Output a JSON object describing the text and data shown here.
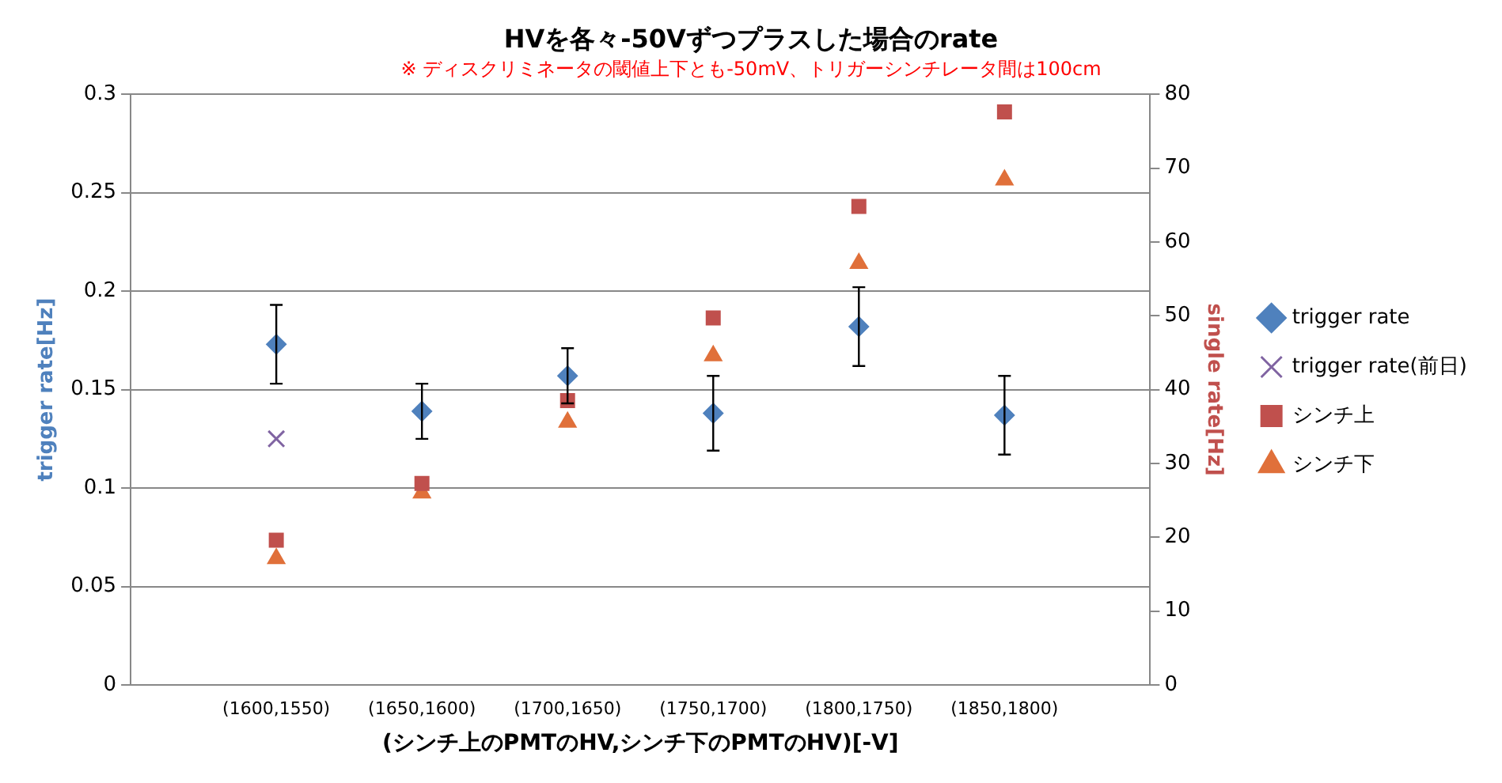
{
  "chart_data": {
    "type": "scatter",
    "title": "HVを各々-50Vずつプラスした場合のrate",
    "subtitle": "※ ディスクリミネータの閾値上下とも-50mV、トリガーシンチレータ間は100cm",
    "xlabel": "(シンチ上のPMTのHV,シンチ下のPMTのHV)[-V]",
    "ylabel": "trigger rate[Hz]",
    "y2label": "single rate[Hz]",
    "categories": [
      "(1600,1550)",
      "(1650,1600)",
      "(1700,1650)",
      "(1750,1700)",
      "(1800,1750)",
      "(1850,1800)"
    ],
    "series": [
      {
        "name": "trigger rate",
        "color": "#4f81bd",
        "marker": "diamond",
        "values": [
          0.173,
          0.139,
          0.157,
          0.138,
          0.182,
          0.137
        ],
        "errors": [
          0.02,
          0.014,
          0.014,
          0.019,
          0.02,
          0.02
        ]
      },
      {
        "name": "trigger rate(前日)",
        "color": "#8064a2",
        "marker": "cross",
        "values": [
          0.125,
          null,
          null,
          null,
          null,
          null
        ]
      },
      {
        "name": "シンチ上",
        "color": "#c0504d",
        "marker": "square",
        "axis": "y2",
        "values": [
          19.6,
          27.3,
          38.5,
          49.7,
          64.8,
          77.6
        ]
      },
      {
        "name": "シンチ下",
        "color": "#e0703a",
        "marker": "triangle",
        "axis": "y2",
        "values": [
          17.1,
          26,
          35.6,
          44.6,
          57.1,
          68.4
        ]
      }
    ],
    "ylim": [
      0,
      0.3
    ],
    "yticks": [
      0,
      0.05,
      0.1,
      0.15,
      0.2,
      0.25,
      0.3
    ],
    "y2lim": [
      0,
      80
    ],
    "y2ticks": [
      0,
      10,
      20,
      30,
      40,
      50,
      60,
      70,
      80
    ],
    "grid": "y",
    "legend": "right"
  }
}
